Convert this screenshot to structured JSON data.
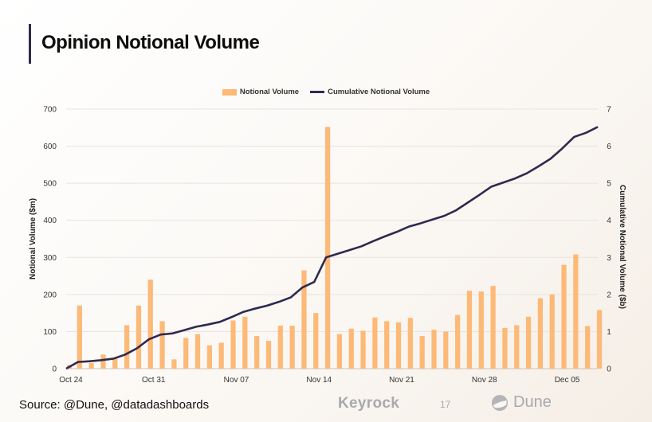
{
  "header": {
    "title": "Opinion Notional Volume"
  },
  "legend": {
    "bar_label": "Notional Volume",
    "line_label": "Cumulative Notional Volume"
  },
  "footer": {
    "source": "Source: @Dune, @datadashboards",
    "brand": "Keyrock",
    "page_number": "17",
    "partner": "Dune"
  },
  "colors": {
    "bar": "#fdb977",
    "line": "#2e2a4f",
    "grid": "#e6e3e0",
    "axis": "#c9c6c2"
  },
  "chart_data": {
    "type": "bar+line",
    "title": "Opinion Notional Volume",
    "ylabel_left": "Notional Volume ($m)",
    "ylabel_right": "Cumulative Notional Volume ($b)",
    "ylim_left": [
      0,
      700
    ],
    "ylim_right": [
      0,
      7
    ],
    "yticks_left": [
      "0",
      "100",
      "200",
      "300",
      "400",
      "500",
      "600",
      "700"
    ],
    "yticks_right": [
      "0",
      "1",
      "2",
      "3",
      "4",
      "5",
      "6",
      "7"
    ],
    "x_tick_labels": [
      {
        "index": 0,
        "label": "Oct 24"
      },
      {
        "index": 7,
        "label": "Oct 31"
      },
      {
        "index": 14,
        "label": "Nov 07"
      },
      {
        "index": 21,
        "label": "Nov 14"
      },
      {
        "index": 28,
        "label": "Nov 21"
      },
      {
        "index": 35,
        "label": "Nov 28"
      },
      {
        "index": 42,
        "label": "Dec 05"
      }
    ],
    "series": [
      {
        "name": "Notional Volume",
        "type": "bar",
        "axis": "left",
        "values": [
          10,
          170,
          15,
          38,
          30,
          117,
          170,
          240,
          128,
          25,
          83,
          93,
          63,
          70,
          130,
          140,
          88,
          75,
          116,
          116,
          265,
          150,
          652,
          93,
          108,
          102,
          138,
          128,
          125,
          137,
          88,
          105,
          100,
          145,
          210,
          208,
          223,
          110,
          117,
          140,
          190,
          200,
          280,
          308,
          115,
          158
        ]
      },
      {
        "name": "Cumulative Notional Volume",
        "type": "line",
        "axis": "right",
        "values": [
          0.0,
          0.18,
          0.2,
          0.23,
          0.27,
          0.38,
          0.55,
          0.79,
          0.92,
          0.95,
          1.04,
          1.13,
          1.19,
          1.26,
          1.39,
          1.53,
          1.62,
          1.7,
          1.8,
          1.92,
          2.19,
          2.34,
          3.0,
          3.1,
          3.2,
          3.3,
          3.44,
          3.57,
          3.69,
          3.83,
          3.92,
          4.02,
          4.12,
          4.27,
          4.48,
          4.69,
          4.91,
          5.02,
          5.13,
          5.27,
          5.46,
          5.66,
          5.94,
          6.25,
          6.36,
          6.52
        ]
      }
    ]
  }
}
